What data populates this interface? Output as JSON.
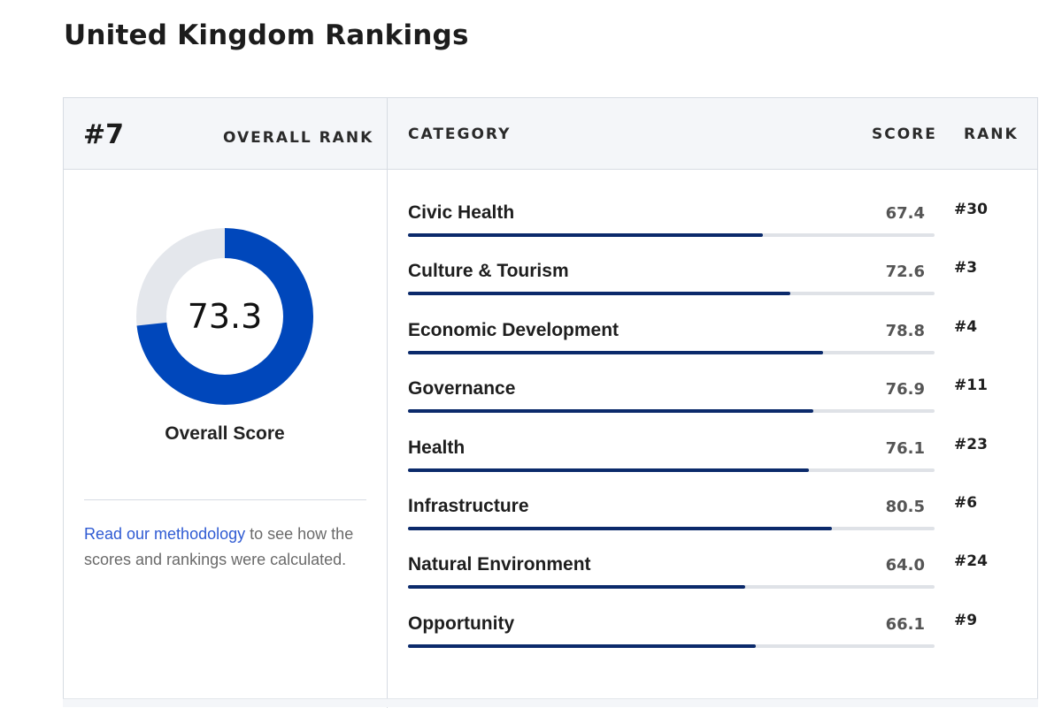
{
  "page": {
    "title": "United Kingdom Rankings"
  },
  "overall": {
    "rank": "#7",
    "rank_label": "OVERALL RANK",
    "score": "73.3",
    "score_value": 73.3,
    "score_label": "Overall Score",
    "colors": {
      "fill": "#0047bb",
      "track": "#e4e7ec"
    }
  },
  "methodology": {
    "link_text": "Read our methodology",
    "rest_text": " to see how the scores and rankings were calculated."
  },
  "table": {
    "headers": {
      "category": "CATEGORY",
      "score": "SCORE",
      "rank": "RANK"
    },
    "rows": [
      {
        "category": "Civic Health",
        "score": "67.4",
        "score_value": 67.4,
        "rank": "#30"
      },
      {
        "category": "Culture & Tourism",
        "score": "72.6",
        "score_value": 72.6,
        "rank": "#3"
      },
      {
        "category": "Economic Development",
        "score": "78.8",
        "score_value": 78.8,
        "rank": "#4"
      },
      {
        "category": "Governance",
        "score": "76.9",
        "score_value": 76.9,
        "rank": "#11"
      },
      {
        "category": "Health",
        "score": "76.1",
        "score_value": 76.1,
        "rank": "#23"
      },
      {
        "category": "Infrastructure",
        "score": "80.5",
        "score_value": 80.5,
        "rank": "#6"
      },
      {
        "category": "Natural Environment",
        "score": "64.0",
        "score_value": 64.0,
        "rank": "#24"
      },
      {
        "category": "Opportunity",
        "score": "66.1",
        "score_value": 66.1,
        "rank": "#9"
      }
    ],
    "bar_color": "#0b2a6b",
    "track_color": "#dfe2e7"
  }
}
